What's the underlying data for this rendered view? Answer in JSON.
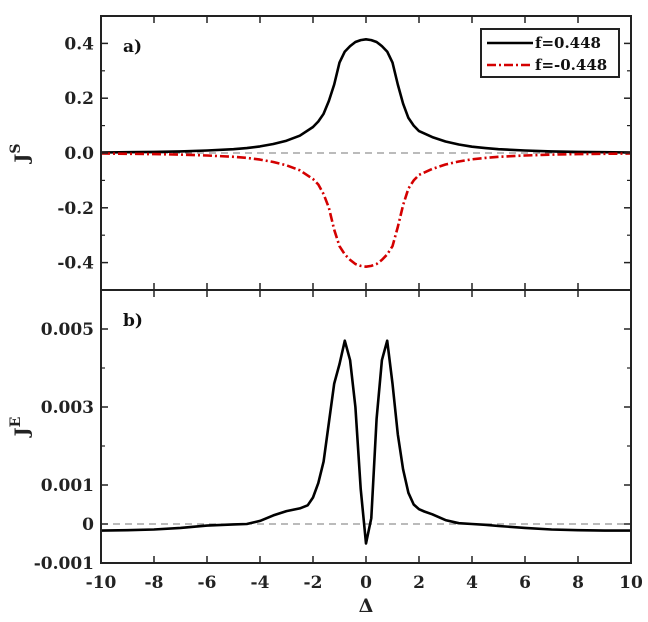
{
  "chart_data": [
    {
      "panel": "a)",
      "type": "line",
      "ylabel": "J",
      "ylabel_sup": "S",
      "xlim": [
        -10,
        10
      ],
      "ylim": [
        -0.5,
        0.5
      ],
      "yticks": [
        -0.4,
        -0.2,
        0.0,
        0.2,
        0.4
      ],
      "ytick_labels": [
        "-0.4",
        "-0.2",
        "0.0",
        "0.2",
        "0.4"
      ],
      "zero_line": true,
      "legend": "top-right",
      "series": [
        {
          "name": "f=0.448",
          "color": "#000000",
          "dash": "solid",
          "x": [
            -10,
            -9,
            -8,
            -7,
            -6,
            -5,
            -4.5,
            -4,
            -3.5,
            -3,
            -2.5,
            -2,
            -1.8,
            -1.6,
            -1.4,
            -1.2,
            -1.0,
            -0.8,
            -0.6,
            -0.4,
            -0.2,
            0,
            0.2,
            0.4,
            0.6,
            0.8,
            1.0,
            1.2,
            1.4,
            1.6,
            1.8,
            2,
            2.5,
            3,
            3.5,
            4,
            4.5,
            5,
            6,
            7,
            8,
            9,
            10
          ],
          "y": [
            0.002,
            0.003,
            0.004,
            0.006,
            0.009,
            0.014,
            0.018,
            0.024,
            0.033,
            0.045,
            0.063,
            0.095,
            0.115,
            0.143,
            0.19,
            0.25,
            0.33,
            0.37,
            0.39,
            0.405,
            0.412,
            0.415,
            0.412,
            0.405,
            0.39,
            0.37,
            0.33,
            0.25,
            0.18,
            0.128,
            0.1,
            0.08,
            0.058,
            0.042,
            0.031,
            0.023,
            0.018,
            0.014,
            0.009,
            0.006,
            0.004,
            0.003,
            0.002
          ]
        },
        {
          "name": "f=-0.448",
          "color": "#d40000",
          "dash": "dashdot",
          "x": [
            -10,
            -9,
            -8,
            -7,
            -6,
            -5,
            -4.5,
            -4,
            -3.5,
            -3,
            -2.5,
            -2,
            -1.8,
            -1.6,
            -1.4,
            -1.2,
            -1.0,
            -0.8,
            -0.6,
            -0.4,
            -0.2,
            0,
            0.2,
            0.4,
            0.6,
            0.8,
            1.0,
            1.2,
            1.4,
            1.6,
            1.8,
            2,
            2.5,
            3,
            3.5,
            4,
            4.5,
            5,
            6,
            7,
            8,
            9,
            10
          ],
          "y": [
            -0.002,
            -0.003,
            -0.004,
            -0.006,
            -0.009,
            -0.014,
            -0.018,
            -0.024,
            -0.033,
            -0.045,
            -0.063,
            -0.095,
            -0.115,
            -0.15,
            -0.2,
            -0.28,
            -0.34,
            -0.37,
            -0.39,
            -0.405,
            -0.412,
            -0.415,
            -0.412,
            -0.405,
            -0.39,
            -0.37,
            -0.34,
            -0.27,
            -0.19,
            -0.13,
            -0.1,
            -0.08,
            -0.058,
            -0.042,
            -0.031,
            -0.023,
            -0.018,
            -0.014,
            -0.009,
            -0.006,
            -0.004,
            -0.003,
            -0.002
          ]
        }
      ]
    },
    {
      "panel": "b)",
      "type": "line",
      "ylabel": "J",
      "ylabel_sup": "E",
      "xlabel": "Δ",
      "xlim": [
        -10,
        10
      ],
      "ylim": [
        -0.001,
        0.006
      ],
      "xticks": [
        -10,
        -8,
        -6,
        -4,
        -2,
        0,
        2,
        4,
        6,
        8,
        10
      ],
      "xtick_labels": [
        "-10",
        "-8",
        "-6",
        "-4",
        "-2",
        "0",
        "2",
        "4",
        "6",
        "8",
        "10"
      ],
      "yticks": [
        -0.001,
        0,
        0.001,
        0.003,
        0.005
      ],
      "ytick_labels": [
        "-0.001",
        "0",
        "0.001",
        "0.003",
        "0.005"
      ],
      "zero_line": true,
      "series": [
        {
          "name": "",
          "color": "#000000",
          "dash": "solid",
          "x": [
            -10,
            -9,
            -8,
            -7,
            -6,
            -5,
            -4.5,
            -4,
            -3.5,
            -3,
            -2.5,
            -2.2,
            -2,
            -1.8,
            -1.6,
            -1.4,
            -1.2,
            -1.0,
            -0.8,
            -0.6,
            -0.4,
            -0.2,
            0,
            0.2,
            0.4,
            0.6,
            0.8,
            1.0,
            1.2,
            1.4,
            1.6,
            1.8,
            2,
            2.2,
            2.5,
            3,
            3.5,
            4,
            4.5,
            5,
            6,
            7,
            8,
            9,
            10
          ],
          "y": [
            -0.00017,
            -0.00016,
            -0.00014,
            -0.0001,
            -4e-05,
            -1e-05,
            0,
            8e-05,
            0.00022,
            0.00033,
            0.0004,
            0.00048,
            0.00068,
            0.00105,
            0.0016,
            0.0026,
            0.0036,
            0.0041,
            0.0047,
            0.0042,
            0.003,
            0.0009,
            -0.0005,
            0.00015,
            0.0027,
            0.0042,
            0.0047,
            0.0036,
            0.0023,
            0.0014,
            0.0008,
            0.0005,
            0.00038,
            0.00032,
            0.00025,
            0.0001,
            2e-05,
            0,
            -2e-05,
            -5e-05,
            -0.0001,
            -0.00014,
            -0.00016,
            -0.00017,
            -0.00017
          ]
        }
      ]
    }
  ],
  "axis_color": "#222222",
  "zero_line_color": "#777777"
}
